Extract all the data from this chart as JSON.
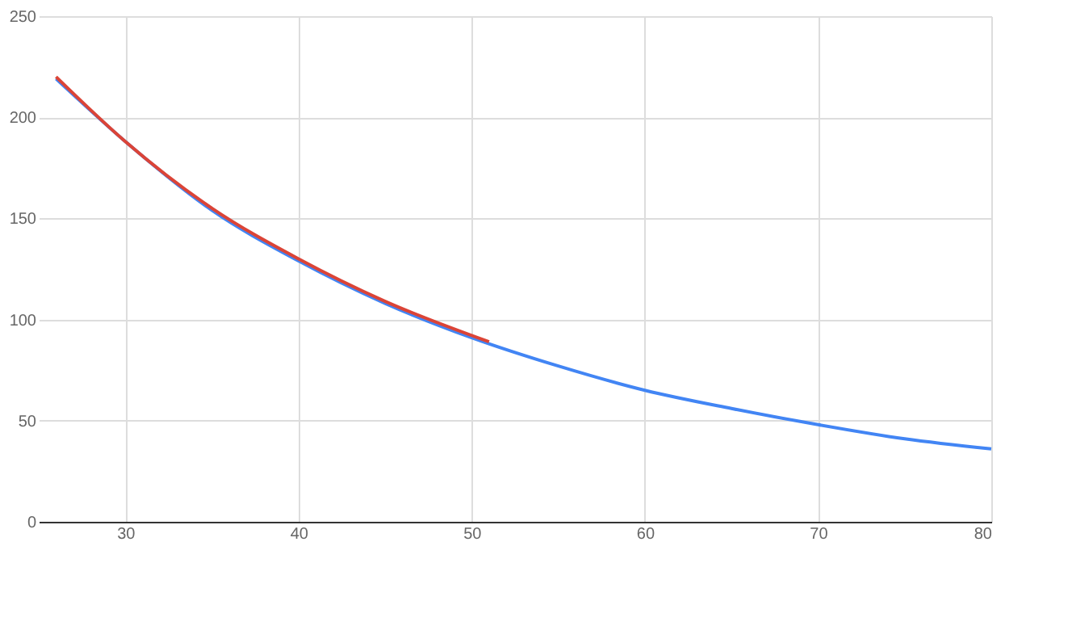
{
  "chart_data": {
    "type": "line",
    "grid": true,
    "xlim": [
      25,
      80
    ],
    "xticks": [
      30,
      40,
      50,
      60,
      70,
      80
    ],
    "ylim": [
      0,
      250
    ],
    "yticks": [
      0,
      50,
      100,
      150,
      200,
      250
    ],
    "series": [
      {
        "color": "#4285f4",
        "x": [
          26,
          30,
          35,
          40,
          45,
          50,
          55,
          60,
          65,
          70,
          75,
          80
        ],
        "values": [
          219,
          188,
          154,
          129,
          108,
          91,
          77,
          65,
          56,
          48,
          41,
          36
        ]
      },
      {
        "color": "#db4437",
        "x": [
          26,
          30,
          35,
          40,
          45,
          51
        ],
        "values": [
          220,
          188,
          155,
          130,
          109,
          89
        ]
      }
    ]
  }
}
